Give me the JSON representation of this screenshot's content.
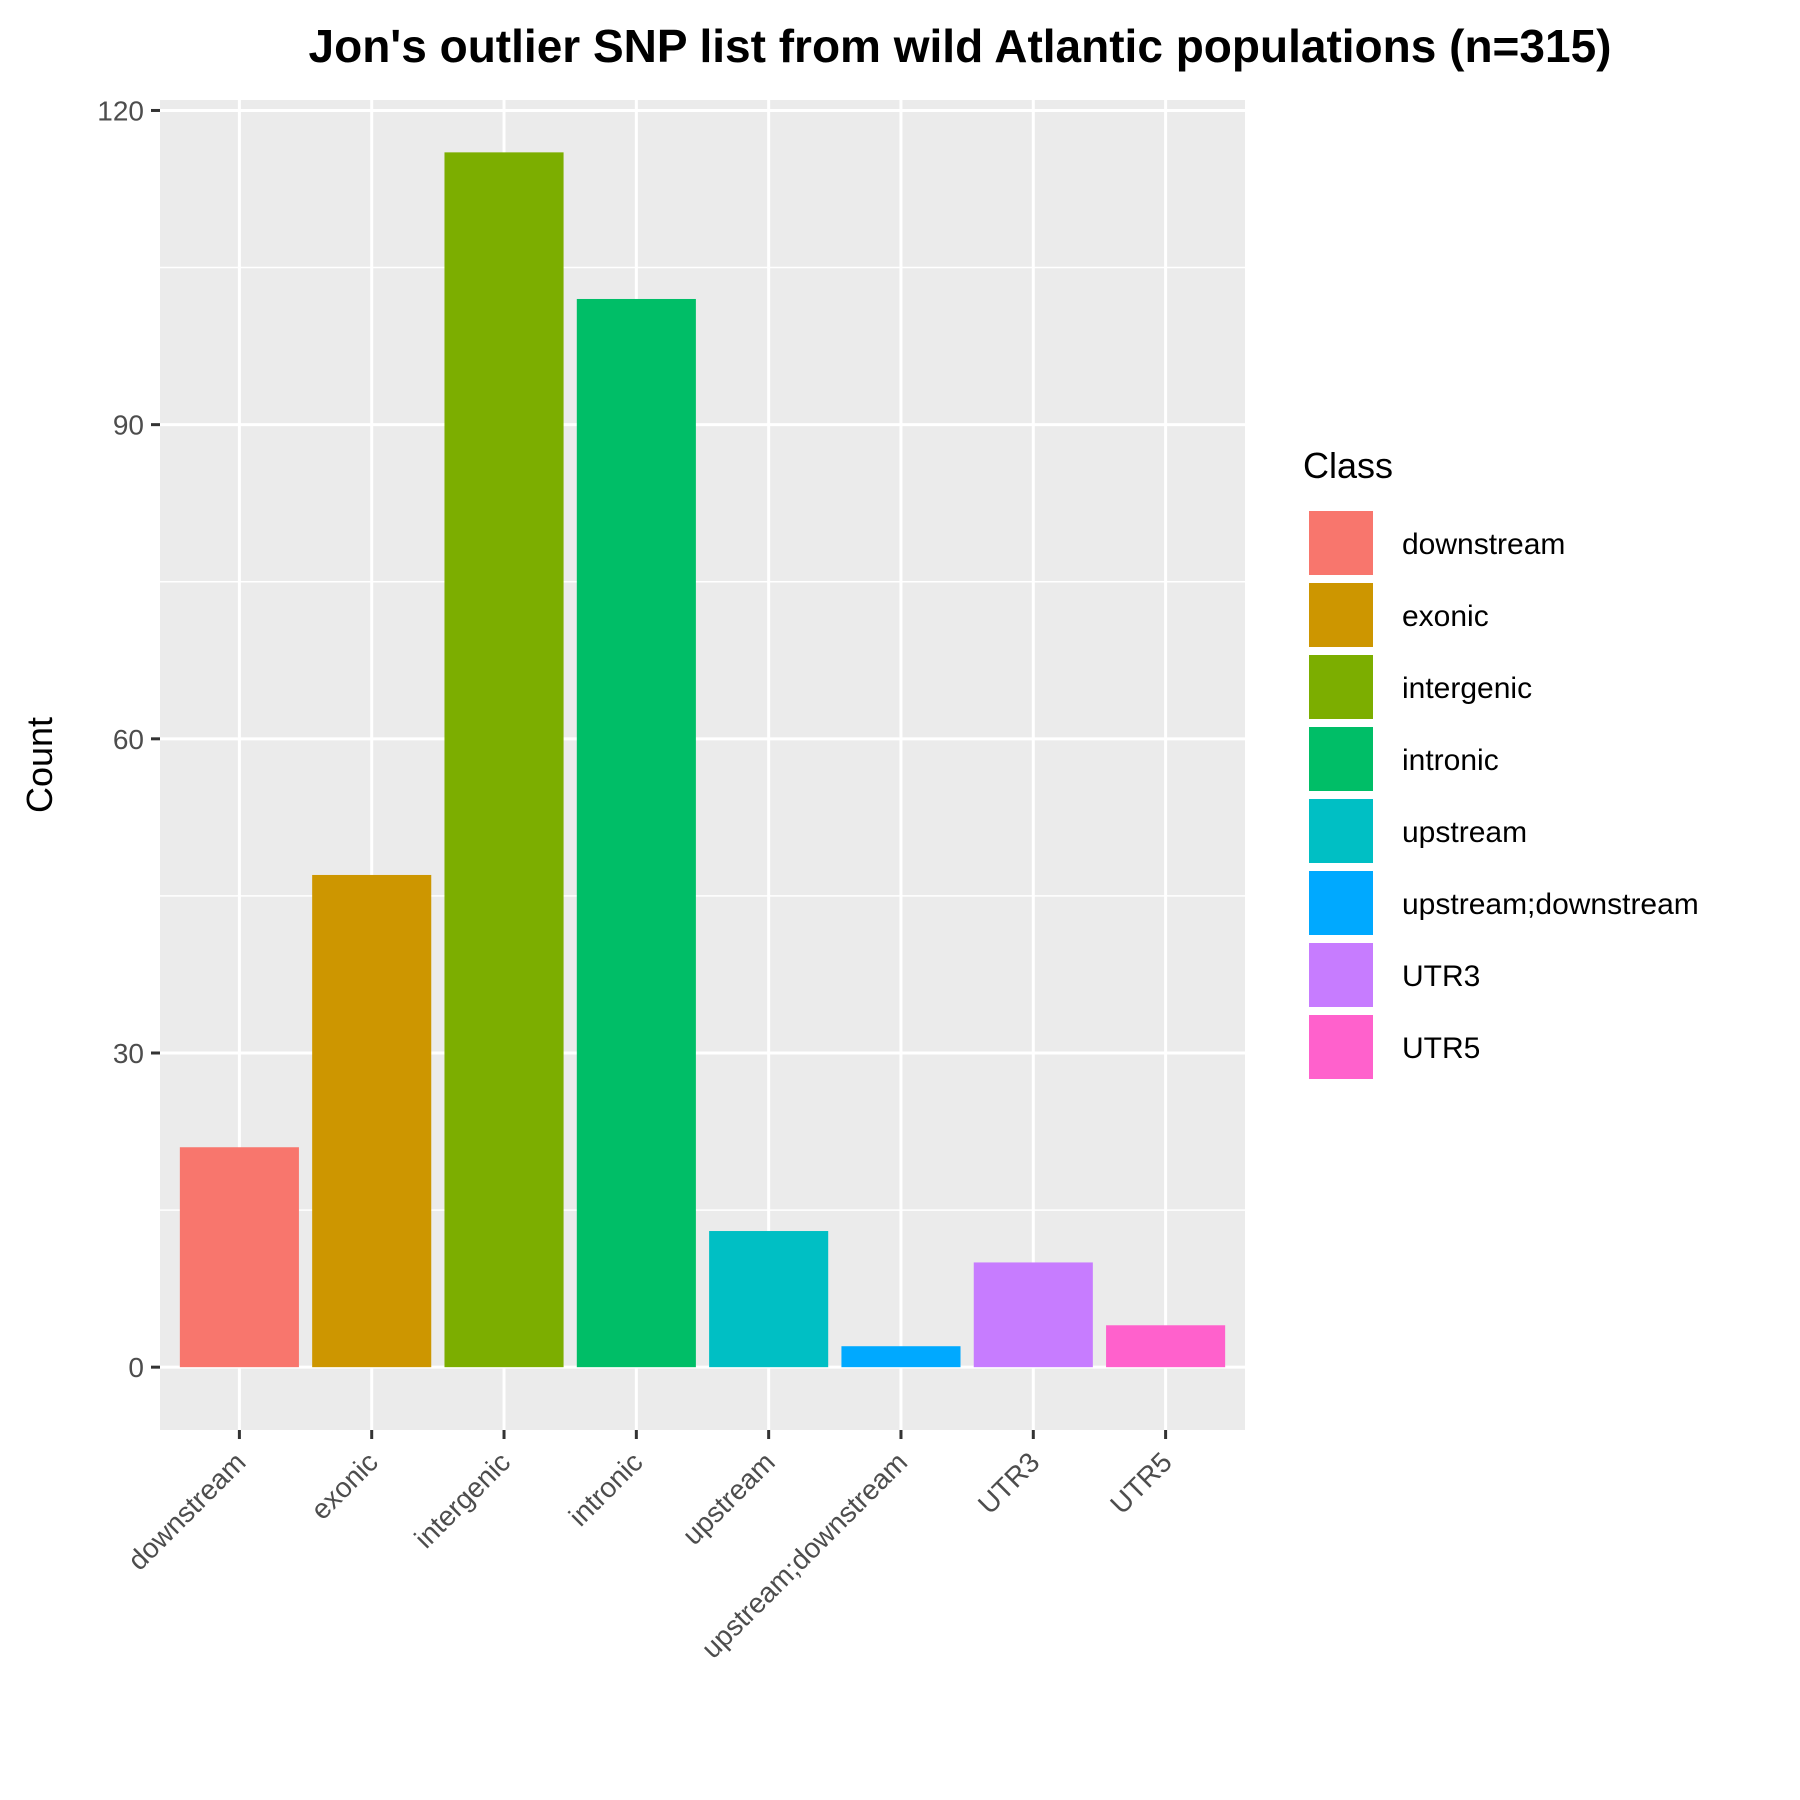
{
  "chart_data": {
    "type": "bar",
    "title": "Jon's outlier SNP list from wild Atlantic populations (n=315)",
    "xlabel": "",
    "ylabel": "Count",
    "categories": [
      "downstream",
      "exonic",
      "intergenic",
      "intronic",
      "upstream",
      "upstream;downstream",
      "UTR3",
      "UTR5"
    ],
    "values": [
      21,
      47,
      116,
      102,
      13,
      2,
      10,
      4
    ],
    "colors": [
      "#F8766D",
      "#CD9600",
      "#7CAE00",
      "#00BE67",
      "#00BFC4",
      "#00A9FF",
      "#C77CFF",
      "#FF61CC"
    ],
    "ylim": [
      -6,
      121
    ],
    "yticks": [
      0,
      30,
      60,
      90,
      120
    ],
    "grid": true,
    "legend": {
      "title": "Class",
      "position": "right",
      "entries": [
        "downstream",
        "exonic",
        "intergenic",
        "intronic",
        "upstream",
        "upstream;downstream",
        "UTR3",
        "UTR5"
      ]
    }
  }
}
